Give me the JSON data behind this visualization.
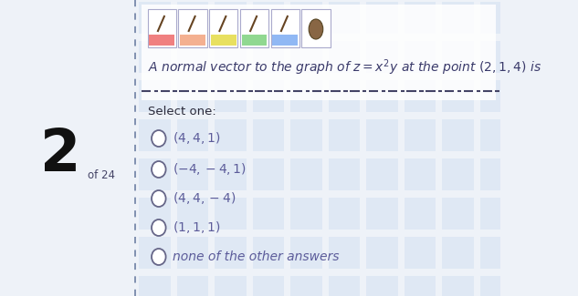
{
  "bg_color": "#eef2f8",
  "white_panel_color": "#ffffff",
  "dashed_line_color": "#555577",
  "question_text": "A normal vector to the graph of $z = x^2y$ at the point $(2, 1, 4)$ is",
  "select_one_text": "Select one:",
  "options": [
    "$(4, 4, 1)$",
    "$(-4, -4, 1)$",
    "$(4, 4, -4)$",
    "$(1, 1, 1)$",
    "none of the other answers"
  ],
  "option_color": "#5c5c9a",
  "question_color": "#3a3a6a",
  "select_color": "#2a2a3a",
  "left_number": "2",
  "left_subtext": "of 24",
  "left_number_color": "#111111",
  "left_subtext_color": "#444466",
  "toolbar_colors": [
    "#f08080",
    "#f4b090",
    "#e8e060",
    "#90d890",
    "#90b8f4"
  ],
  "vertical_line_color": "#7788aa",
  "tile_color": "#c8d8ee",
  "lm": 0.27
}
